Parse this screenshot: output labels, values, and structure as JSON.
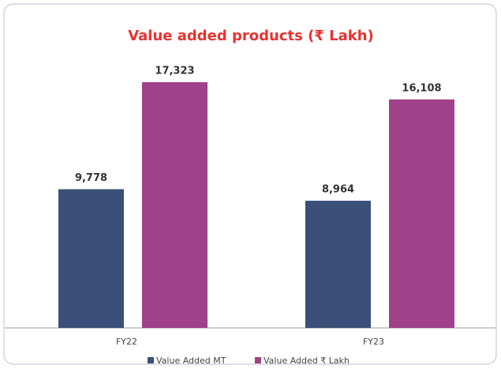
{
  "chart_data": {
    "type": "bar",
    "title": "Value added products (₹ Lakh)",
    "categories": [
      "FY22",
      "FY23"
    ],
    "series": [
      {
        "name": "Value Added MT",
        "color": "#3a5078",
        "values": [
          9778,
          8964
        ],
        "value_labels": [
          "9,778",
          "8,964"
        ]
      },
      {
        "name": "Value Added ₹ Lakh",
        "color": "#a0418a",
        "values": [
          17323,
          16108
        ],
        "value_labels": [
          "17,323",
          "16,108"
        ]
      }
    ],
    "legend": "bottom"
  }
}
